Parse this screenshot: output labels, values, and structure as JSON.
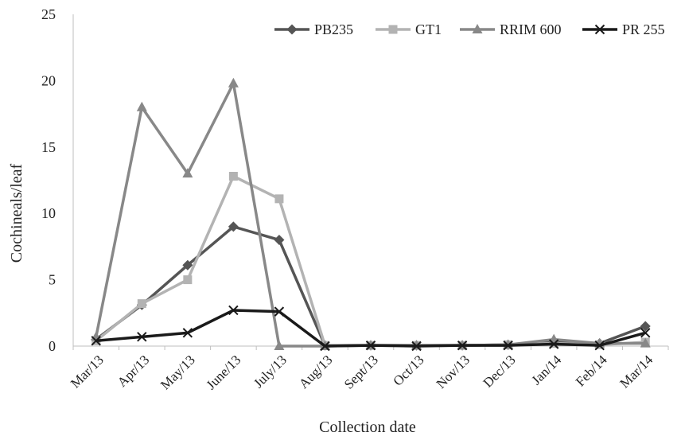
{
  "chart_data": {
    "type": "line",
    "title": "",
    "xlabel": "Collection date",
    "ylabel": "Cochineals/leaf",
    "ylim": [
      0,
      25
    ],
    "yticks": [
      0,
      5,
      10,
      15,
      20,
      25
    ],
    "grid": false,
    "legend_position": "top-right",
    "categories": [
      "Mar/13",
      "Apr/13",
      "May/13",
      "June/13",
      "July/13",
      "Aug/13",
      "Sept/13",
      "Oct/13",
      "Nov/13",
      "Dec/13",
      "Jan/14",
      "Feb/14",
      "Mar/14"
    ],
    "series": [
      {
        "name": "PB235",
        "color": "#555555",
        "marker": "diamond",
        "values": [
          0.5,
          3.1,
          6.1,
          9.0,
          8.0,
          0.05,
          0.05,
          0.05,
          0.05,
          0.1,
          0.3,
          0.2,
          1.5
        ]
      },
      {
        "name": "GT1",
        "color": "#b3b3b3",
        "marker": "square",
        "values": [
          0.4,
          3.2,
          5.0,
          12.8,
          11.1,
          0.05,
          0.05,
          0.05,
          0.05,
          0.1,
          0.2,
          0.1,
          0.3
        ]
      },
      {
        "name": "RRIM 600",
        "color": "#888888",
        "marker": "triangle",
        "values": [
          0.7,
          18.0,
          13.0,
          19.8,
          0.0,
          0.0,
          0.05,
          0.05,
          0.05,
          0.1,
          0.5,
          0.2,
          0.2
        ]
      },
      {
        "name": "PR 255",
        "color": "#1a1a1a",
        "marker": "x",
        "values": [
          0.4,
          0.7,
          1.0,
          2.7,
          2.6,
          0.0,
          0.05,
          0.0,
          0.05,
          0.05,
          0.15,
          0.05,
          1.0
        ]
      }
    ]
  }
}
